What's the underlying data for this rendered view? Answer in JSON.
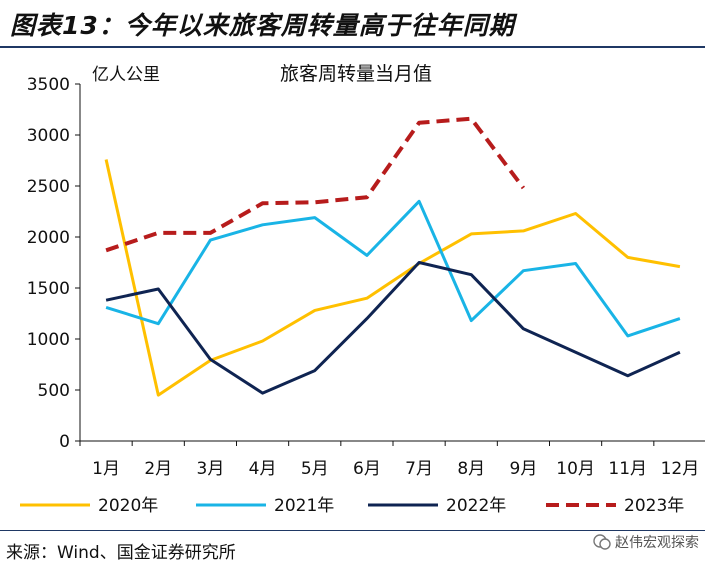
{
  "figure": {
    "title": "图表13：今年以来旅客周转量高于往年同期",
    "source": "来源：Wind、国金证券研究所",
    "watermark": "赵伟宏观探索"
  },
  "chart_data": {
    "type": "line",
    "title": "旅客周转量当月值",
    "ylabel": "亿人公里",
    "xlabel": "",
    "ylim": [
      0,
      3500
    ],
    "yticks": [
      0,
      500,
      1000,
      1500,
      2000,
      2500,
      3000,
      3500
    ],
    "categories": [
      "1月",
      "2月",
      "3月",
      "4月",
      "5月",
      "6月",
      "7月",
      "8月",
      "9月",
      "10月",
      "11月",
      "12月"
    ],
    "grid": false,
    "legend": "bottom",
    "series": [
      {
        "name": "2020年",
        "color": "#ffc000",
        "dash": false,
        "values": [
          2760,
          450,
          790,
          980,
          1280,
          1400,
          1740,
          2030,
          2060,
          2230,
          1800,
          1710
        ]
      },
      {
        "name": "2021年",
        "color": "#19b4e6",
        "dash": false,
        "values": [
          1310,
          1150,
          1970,
          2120,
          2190,
          1820,
          2350,
          1180,
          1670,
          1740,
          1030,
          1200
        ]
      },
      {
        "name": "2022年",
        "color": "#0f2452",
        "dash": false,
        "values": [
          1380,
          1490,
          800,
          470,
          690,
          1200,
          1750,
          1630,
          1100,
          870,
          640,
          870
        ]
      },
      {
        "name": "2023年",
        "color": "#b71c1c",
        "dash": true,
        "values": [
          1870,
          2040,
          2040,
          2330,
          2340,
          2390,
          3120,
          3160,
          2480,
          null,
          null,
          null
        ]
      }
    ]
  }
}
